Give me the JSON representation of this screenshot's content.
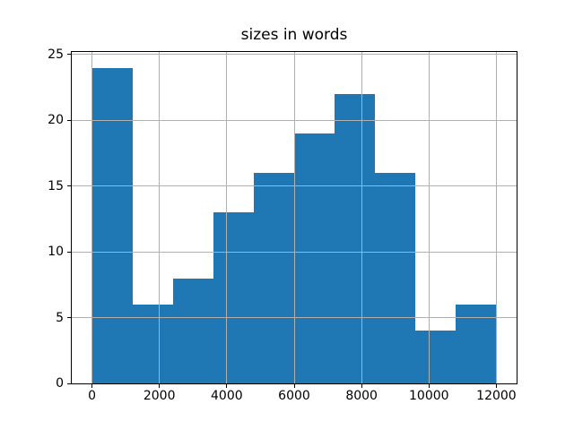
{
  "chart_data": {
    "type": "bar",
    "subtype": "histogram",
    "title": "sizes in words",
    "xlabel": "",
    "ylabel": "",
    "bin_edges": [
      0,
      1200,
      2400,
      3600,
      4800,
      6000,
      7200,
      8400,
      9600,
      10800,
      12000
    ],
    "counts": [
      24,
      6,
      8,
      13,
      16,
      19,
      22,
      16,
      4,
      6
    ],
    "x_tick_values": [
      0,
      2000,
      4000,
      6000,
      8000,
      10000,
      12000
    ],
    "x_tick_labels": [
      "0",
      "2000",
      "4000",
      "6000",
      "8000",
      "10000",
      "12000"
    ],
    "y_tick_values": [
      0,
      5,
      10,
      15,
      20,
      25
    ],
    "y_tick_labels": [
      "0",
      "5",
      "10",
      "15",
      "20",
      "25"
    ],
    "xlim": [
      -600,
      12600
    ],
    "ylim": [
      0,
      25.2
    ],
    "grid": true,
    "grid_above_bars": true,
    "legend": null,
    "colors": {
      "bar": "#1f77b4",
      "grid": "#b0b0b0",
      "spine": "#000000",
      "text": "#000000",
      "background": "#ffffff"
    }
  }
}
